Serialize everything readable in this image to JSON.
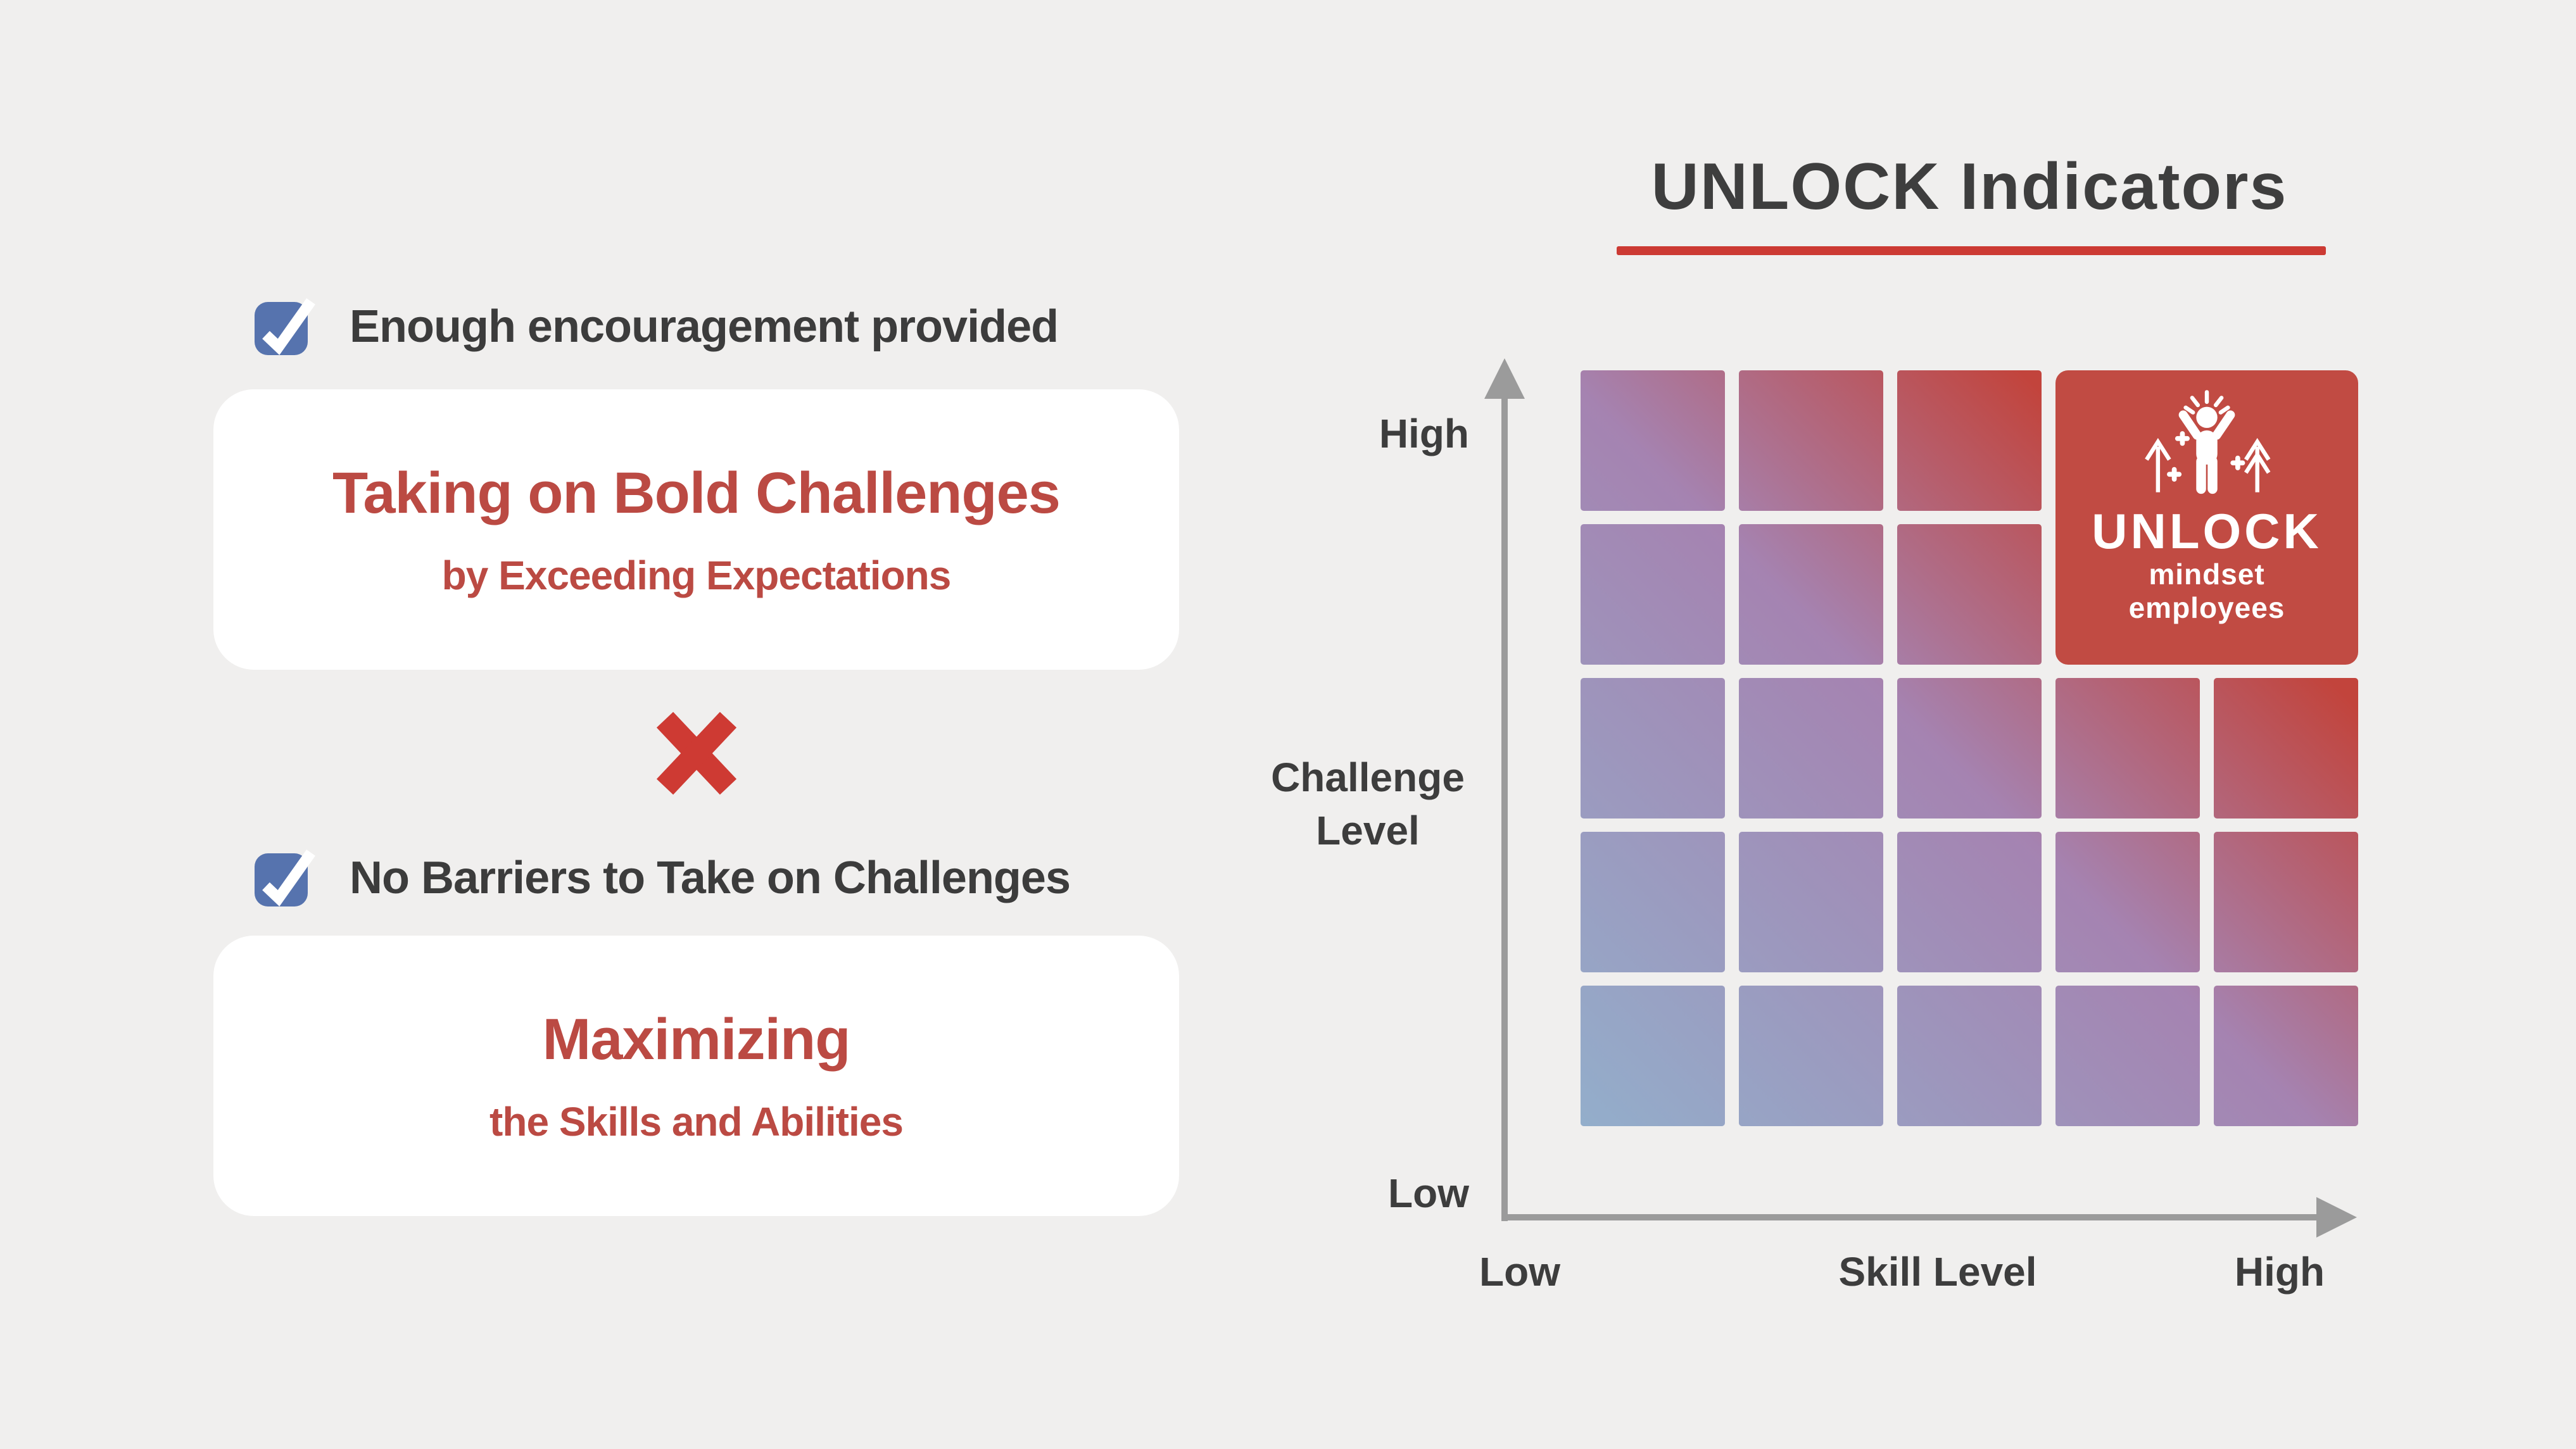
{
  "page": {
    "background": "#f0efee"
  },
  "left_panel": {
    "items": [
      {
        "check_label": "Enough encouragement provided",
        "card_title": "Taking on Bold Challenges",
        "card_subtitle": "by Exceeding Expectations"
      },
      {
        "check_label": "No Barriers to Take on Challenges",
        "card_title": "Maximizing",
        "card_subtitle": "the Skills and Abilities"
      }
    ],
    "operator_icon": "multiply-icon",
    "checkbox_color": "#5673ae",
    "card_text_color": "#bb4a43",
    "multiply_color": "#ce3a33"
  },
  "chart": {
    "title": "UNLOCK Indicators",
    "underline_color": "#cc3a33",
    "axis_color": "#9b9b9b"
  },
  "chart_data": {
    "type": "heatmap",
    "rows": 5,
    "cols": 5,
    "x_axis": {
      "label": "Skill Level",
      "min_label": "Low",
      "max_label": "High"
    },
    "y_axis": {
      "label": "Challenge Level",
      "min_label": "Low",
      "max_label": "High"
    },
    "gradient": {
      "low": "#93aecb",
      "mid": "#a583b1",
      "high": "#c2443c",
      "note": "single diagonal gradient across whole grid, blue bottom-left to red top-right"
    },
    "unlock_tile": {
      "row": 1,
      "col": 4,
      "row_span": 2,
      "col_span": 2,
      "color": "#c14b43",
      "label_main": "UNLOCK",
      "label_sub": "mindset",
      "label_sub2": "employees",
      "icon": "celebrating-person-with-up-arrows-icon"
    }
  }
}
